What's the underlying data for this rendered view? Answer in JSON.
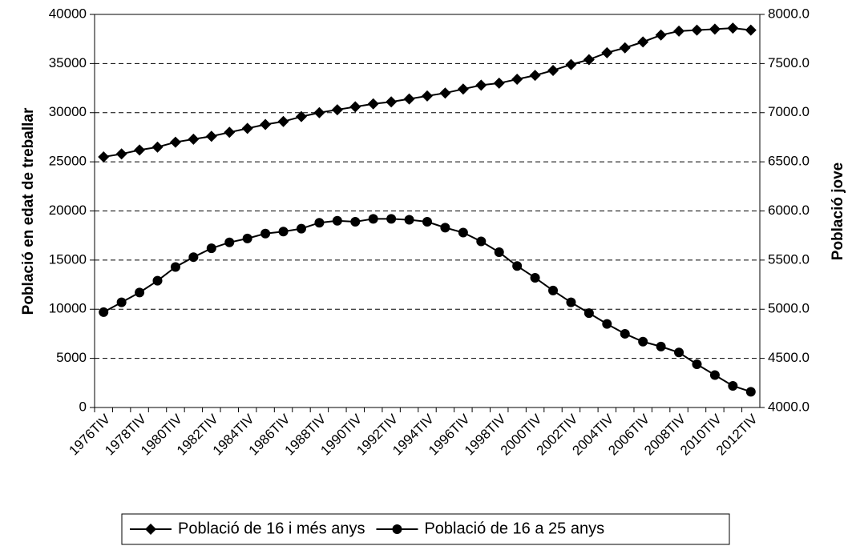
{
  "chart_data": {
    "type": "line",
    "y_label": "Població en edat de treballar",
    "y2_label": "Població jove",
    "categories": [
      "1976TIV",
      null,
      "1978TIV",
      null,
      "1980TIV",
      null,
      "1982TIV",
      null,
      "1984TIV",
      null,
      "1986TIV",
      null,
      "1988TIV",
      null,
      "1990TIV",
      null,
      "1992TIV",
      null,
      "1994TIV",
      null,
      "1996TIV",
      null,
      "1998TIV",
      null,
      "2000TIV",
      null,
      "2002TIV",
      null,
      "2004TIV",
      null,
      "2006TIV",
      null,
      "2008TIV",
      null,
      "2010TIV",
      null,
      "2012TIV"
    ],
    "series": [
      {
        "name": "Població de 16 i més anys",
        "color": "#000000",
        "marker": "diamond",
        "values": [
          25500,
          25800,
          26200,
          26500,
          27000,
          27300,
          27600,
          28000,
          28400,
          28800,
          29100,
          29600,
          30000,
          30300,
          30600,
          30900,
          31100,
          31400,
          31700,
          32000,
          32400,
          32800,
          33000,
          33400,
          33800,
          34300,
          34900,
          35400,
          36100,
          36600,
          37200,
          37900,
          38300,
          38400,
          38500,
          38600,
          38400
        ]
      },
      {
        "name": "Població de 16 a 25 anys",
        "color": "#000000",
        "marker": "circle",
        "axis": "y2",
        "values": [
          4970,
          5070,
          5170,
          5290,
          5430,
          5530,
          5620,
          5680,
          5720,
          5770,
          5790,
          5820,
          5880,
          5900,
          5890,
          5920,
          5920,
          5910,
          5890,
          5830,
          5780,
          5690,
          5580,
          5440,
          5320,
          5190,
          5070,
          4960,
          4850,
          4750,
          4670,
          4620,
          4560,
          4440,
          4330,
          4220,
          4160
        ]
      }
    ],
    "ylim": [
      0,
      40000
    ],
    "yticks": [
      0,
      5000,
      10000,
      15000,
      20000,
      25000,
      30000,
      35000,
      40000
    ],
    "y2lim": [
      4000,
      8000
    ],
    "y2ticks": [
      {
        "value": 4000,
        "label": "4000.0"
      },
      {
        "value": 4500,
        "label": "4500.0"
      },
      {
        "value": 5000,
        "label": "5000.0"
      },
      {
        "value": 5500,
        "label": "5500.0"
      },
      {
        "value": 6000,
        "label": "6000.0"
      },
      {
        "value": 6500,
        "label": "6500.0"
      },
      {
        "value": 7000,
        "label": "7000.0"
      },
      {
        "value": 7500,
        "label": "7500.0"
      },
      {
        "value": 8000,
        "label": "8000.0"
      }
    ],
    "grid": true,
    "legend": "bottom"
  }
}
